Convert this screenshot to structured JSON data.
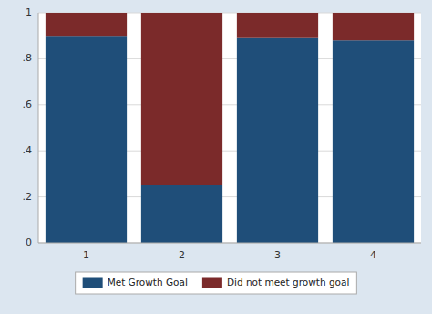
{
  "chart_data": {
    "type": "bar",
    "stacked": true,
    "grid": true,
    "legend": "bottom",
    "categories": [
      "1",
      "2",
      "3",
      "4"
    ],
    "series": [
      {
        "name": "Met Growth Goal",
        "color": "#1f4e79",
        "values": [
          0.9,
          0.25,
          0.89,
          0.88
        ]
      },
      {
        "name": "Did not meet growth goal",
        "color": "#7b2a2a",
        "values": [
          0.1,
          0.75,
          0.11,
          0.12
        ]
      }
    ],
    "ylim": [
      0,
      1
    ],
    "yticks": [
      0,
      {
        "value": 0.2,
        "label": ".2"
      },
      {
        "value": 0.4,
        "label": ".4"
      },
      {
        "value": 0.6,
        "label": ".6"
      },
      {
        "value": 0.8,
        "label": ".8"
      },
      1
    ]
  }
}
